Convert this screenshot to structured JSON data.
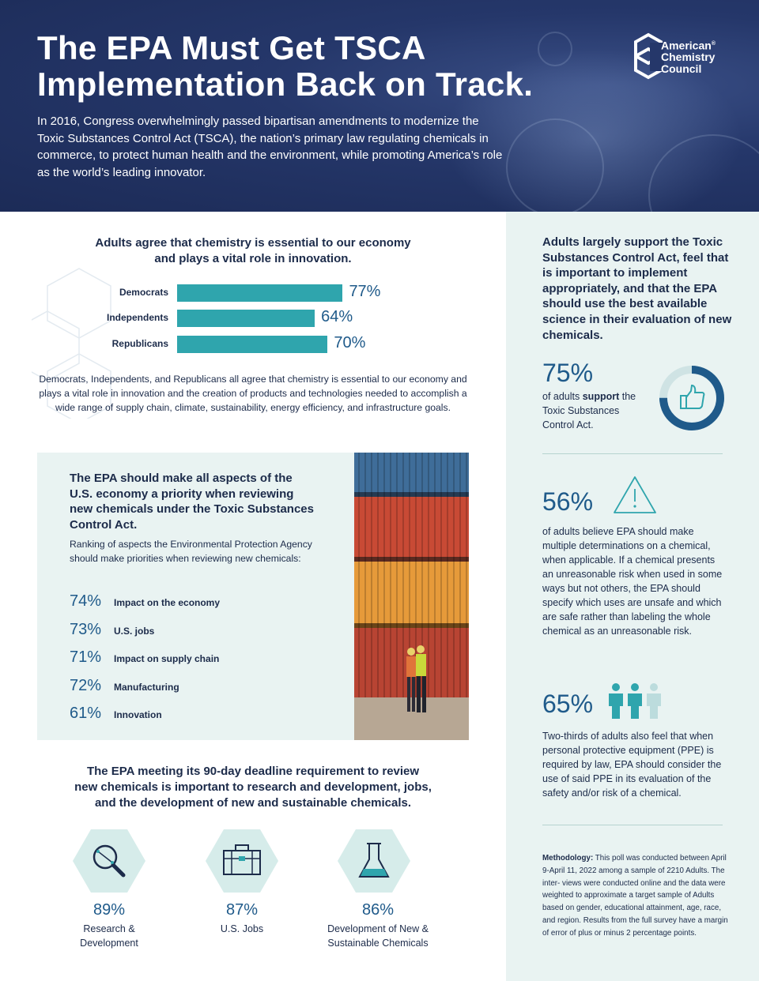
{
  "header": {
    "title_line1": "The EPA Must Get TSCA",
    "title_line2": "Implementation Back on Track.",
    "intro": "In 2016, Congress overwhelmingly passed bipartisan amendments to modernize the Toxic Substances Control Act (TSCA), the nation’s primary law regulating chemicals in commerce, to protect human health and the environment, while promoting America’s role as the world’s leading innovator.",
    "logo": {
      "line1": "American",
      "line2": "Chemistry",
      "line3": "Council",
      "reg": "®"
    }
  },
  "chart_section": {
    "title_line1": "Adults agree that chemistry is essential to our economy",
    "title_line2": "and plays a vital role in innovation.",
    "note": "Democrats, Independents, and Republicans all agree that chemistry is essential to our economy and plays a vital role in innovation and the creation of products and technologies needed to accomplish a wide range of supply chain, climate, sustainability, energy efficiency, and infrastructure goals."
  },
  "chart_data": {
    "type": "bar",
    "orientation": "horizontal",
    "categories": [
      "Democrats",
      "Independents",
      "Republicans"
    ],
    "values": [
      77,
      64,
      70
    ],
    "labels": [
      "77%",
      "64%",
      "70%"
    ],
    "xlim": [
      0,
      100
    ],
    "color": "#2fa5ad"
  },
  "priorities": {
    "title": "The EPA should make all aspects of the U.S. economy a priority when reviewing new chemicals under the Toxic Substances Control Act.",
    "subtitle": "Ranking of aspects the Environmental Protection Agency should make priorities when reviewing new chemicals:",
    "items": [
      {
        "pct": "74%",
        "label": "Impact on the economy"
      },
      {
        "pct": "73%",
        "label": "U.S. jobs"
      },
      {
        "pct": "71%",
        "label": "Impact on supply chain"
      },
      {
        "pct": "72%",
        "label": "Manufacturing"
      },
      {
        "pct": "61%",
        "label": "Innovation"
      }
    ]
  },
  "deadline": {
    "title_line1": "The EPA meeting its 90-day deadline requirement to review",
    "title_line2": "new chemicals is important to research and development, jobs,",
    "title_line3": "and the development of new and sustainable chemicals.",
    "stats": [
      {
        "pct": "89%",
        "label_line1": "Research &",
        "label_line2": "Development",
        "icon": "magnifier-icon"
      },
      {
        "pct": "87%",
        "label_line1": "U.S. Jobs",
        "label_line2": "",
        "icon": "briefcase-icon"
      },
      {
        "pct": "86%",
        "label_line1": "Development of New &",
        "label_line2": "Sustainable Chemicals",
        "icon": "flask-icon"
      }
    ]
  },
  "right_panel": {
    "heading": "Adults largely support the Toxic Substances Control Act, feel that is important to implement appropriately, and that the EPA should use the best available science in their evaluation of new chemicals.",
    "stat1": {
      "pct": "75%",
      "text_pre": "of adults ",
      "text_bold": "support",
      "text_post": " the Toxic Substances Control Act.",
      "donut_value": 0.75
    },
    "stat2": {
      "pct": "56%",
      "text": "of adults believe EPA should make multiple determinations on a chemical, when applicable. If a chemical presents an unreasonable risk when used in some ways but not others, the EPA should specify which uses are unsafe and which are safe rather than labeling the whole chemical as an unreasonable risk."
    },
    "stat3": {
      "pct": "65%",
      "text": "Two-thirds of adults also feel that when personal protective equipment (PPE) is required by law, EPA should consider the use of said PPE in its evaluation of the safety and/or risk of a chemical."
    },
    "methodology_label": "Methodology:",
    "methodology": " This poll was conducted between April 9-April 11, 2022 among a sample of 2210 Adults. The inter- views were conducted online and the data were weighted to approximate a target sample of Adults based on gender, educational attainment, age, race, and region. Results from the full survey have a margin of error of plus or minus 2 percentage points."
  },
  "colors": {
    "navy": "#1c2b57",
    "teal": "#2fa5ad",
    "blue_text": "#1f5a8a",
    "panel_bg": "#e9f3f2"
  }
}
